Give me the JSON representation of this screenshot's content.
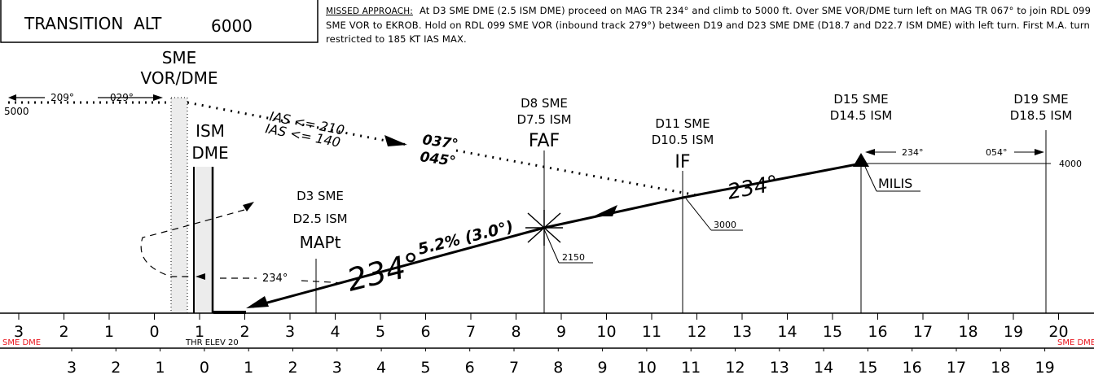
{
  "transition": {
    "label": "TRANSITION  ALT",
    "value": "6000"
  },
  "missed_approach": {
    "label": "MISSED APPROACH:",
    "text": "At D3 SME DME (2.5 ISM DME) proceed on MAG TR 234° and climb to 5000 ft. Over SME VOR/DME turn left on MAG TR 067° to join RDL 099 SME VOR to EKROB. Hold on RDL 099 SME VOR (inbound track 279°) between D19 and D23 SME DME (D18.7 and D22.7 ISM DME) with left turn. First M.A. turn restricted to 185 KT IAS MAX."
  },
  "facilities": {
    "sme": [
      "SME",
      "VOR/DME"
    ],
    "ism": [
      "ISM",
      "DME"
    ]
  },
  "fixes": {
    "mapt": [
      "D3 SME",
      "D2.5 ISM",
      "MAPt"
    ],
    "faf": [
      "D8 SME",
      "D7.5 ISM",
      "FAF"
    ],
    "if": [
      "D11 SME",
      "D10.5 ISM",
      "IF"
    ],
    "milis_dist": [
      "D15 SME",
      "D14.5 ISM"
    ],
    "milis": "MILIS",
    "d19": [
      "D19 SME",
      "D18.5 ISM"
    ]
  },
  "altitudes": {
    "left": "5000",
    "if": "3000",
    "faf": "2150",
    "milis": "4000"
  },
  "tracks": {
    "outbound_left": "209°",
    "inbound_left": "029°",
    "ias_210": "IAS <= 210",
    "ias_140": "IAS <= 140",
    "t037": "037°",
    "t045": "045°",
    "final": "234°",
    "descent": "5.2% (3.0°)",
    "final_large": "234°",
    "missed": "234°",
    "holding_in": "234°",
    "holding_out": "054°"
  },
  "scales": {
    "sme_label": "SME DME",
    "sme_label_right": "SME DME",
    "thr_label": "THR ELEV 20",
    "sme_ticks": [
      "3",
      "2",
      "1",
      "0",
      "1",
      "2",
      "3",
      "4",
      "5",
      "6",
      "7",
      "8",
      "9",
      "10",
      "11",
      "12",
      "13",
      "14",
      "15",
      "16",
      "17",
      "18",
      "19",
      "20"
    ],
    "ism_ticks": [
      "3",
      "2",
      "1",
      "0",
      "1",
      "2",
      "3",
      "4",
      "5",
      "6",
      "7",
      "8",
      "9",
      "10",
      "11",
      "12",
      "13",
      "14",
      "15",
      "16",
      "17",
      "18",
      "19"
    ]
  },
  "colors": {
    "ink": "#000000",
    "scale_label": "#e8131b"
  }
}
